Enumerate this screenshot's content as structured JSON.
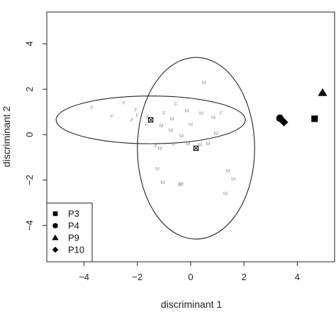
{
  "chart_data": {
    "type": "scatter",
    "xlabel": "discriminant 1",
    "ylabel": "discriminant 2",
    "xlim": [
      -5.4,
      5.4
    ],
    "ylim": [
      -5.6,
      5.4
    ],
    "xticks": [
      -4,
      -2,
      0,
      2,
      4
    ],
    "yticks": [
      -4,
      -2,
      0,
      2,
      4
    ],
    "grid": false,
    "legend_position": "bottom-left",
    "labeled_points": [
      {
        "label": "F",
        "x": -3.7,
        "y": 1.2
      },
      {
        "label": "F",
        "x": -2.95,
        "y": 0.8
      },
      {
        "label": "F",
        "x": -2.5,
        "y": 1.4
      },
      {
        "label": "F",
        "x": -2.2,
        "y": 0.65
      },
      {
        "label": "F",
        "x": -2.05,
        "y": 1.1
      },
      {
        "label": "F",
        "x": -2.0,
        "y": 0.85
      },
      {
        "label": "F",
        "x": -1.65,
        "y": 0.45
      },
      {
        "label": "F",
        "x": -1.6,
        "y": 0.75
      },
      {
        "label": "F",
        "x": -1.0,
        "y": 0.95
      },
      {
        "label": "F",
        "x": -0.55,
        "y": 1.35
      },
      {
        "label": "F",
        "x": 1.15,
        "y": 0.95
      },
      {
        "label": "F",
        "x": -1.3,
        "y": -0.5
      },
      {
        "label": "M",
        "x": 0.5,
        "y": 2.3
      },
      {
        "label": "M",
        "x": -0.15,
        "y": 1.05
      },
      {
        "label": "M",
        "x": -1.1,
        "y": 0.4
      },
      {
        "label": "M",
        "x": -0.7,
        "y": 0.7
      },
      {
        "label": "M",
        "x": 0.4,
        "y": 0.95
      },
      {
        "label": "M",
        "x": 0.85,
        "y": 0.75
      },
      {
        "label": "M",
        "x": -0.75,
        "y": 0.2
      },
      {
        "label": "M",
        "x": 0.0,
        "y": 0.45
      },
      {
        "label": "M",
        "x": -0.35,
        "y": -0.05
      },
      {
        "label": "M",
        "x": 0.95,
        "y": 0.05
      },
      {
        "label": "M",
        "x": 0.65,
        "y": -0.4
      },
      {
        "label": "M",
        "x": 0.35,
        "y": -0.45
      },
      {
        "label": "M",
        "x": -0.1,
        "y": -0.4
      },
      {
        "label": "M",
        "x": -0.65,
        "y": -0.4
      },
      {
        "label": "M",
        "x": -1.15,
        "y": -0.6
      },
      {
        "label": "M",
        "x": -1.25,
        "y": -1.5
      },
      {
        "label": "M",
        "x": -1.05,
        "y": -2.1
      },
      {
        "label": "M",
        "x": -0.35,
        "y": -2.15
      },
      {
        "label": "M",
        "x": -0.4,
        "y": -2.2
      },
      {
        "label": "M",
        "x": 1.4,
        "y": -1.6
      },
      {
        "label": "M",
        "x": 1.6,
        "y": -1.95
      },
      {
        "label": "M",
        "x": 1.3,
        "y": -2.6
      }
    ],
    "centroids": [
      {
        "x": -1.5,
        "y": 0.65
      },
      {
        "x": 0.2,
        "y": -0.6
      }
    ],
    "ellipses": [
      {
        "cx": -1.5,
        "cy": 0.65,
        "rx": 3.55,
        "ry": 1.05
      },
      {
        "cx": 0.2,
        "cy": -0.6,
        "rx": 2.2,
        "ry": 4.0
      }
    ],
    "series": [
      {
        "name": "P3",
        "marker": "square",
        "x": 4.65,
        "y": 0.7
      },
      {
        "name": "P4",
        "marker": "circle",
        "x": 3.35,
        "y": 0.72
      },
      {
        "name": "P9",
        "marker": "triangle",
        "x": 4.95,
        "y": 1.85
      },
      {
        "name": "P10",
        "marker": "diamond",
        "x": 3.5,
        "y": 0.55
      }
    ]
  },
  "colors": {
    "axis": "#222222",
    "point_label": "#9a9a9a",
    "marker": "#000000"
  }
}
